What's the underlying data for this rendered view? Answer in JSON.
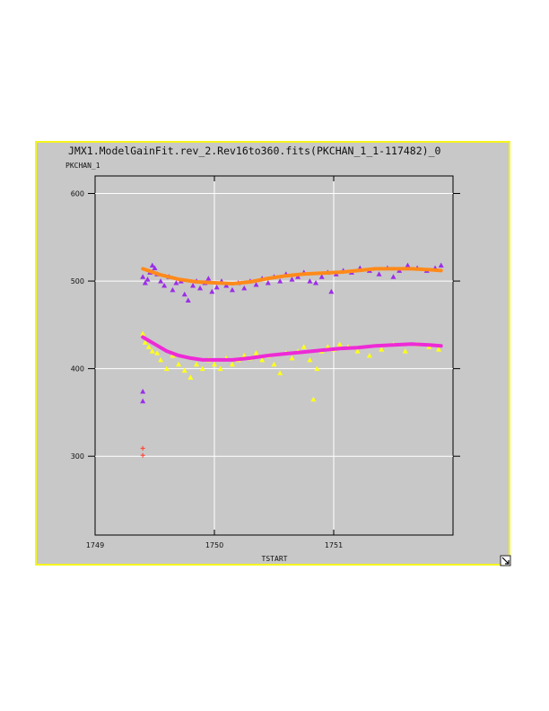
{
  "window": {
    "frame_color": "#f5f51c",
    "background": "#c8c8c8",
    "resize_icon": "resize-arrow-icon"
  },
  "chart_data": {
    "type": "scatter",
    "title": "JMX1.ModelGainFit.rev_2.Rev16to360.fits(PKCHAN_1_1-117482)_0",
    "xlabel": "TSTART",
    "ylabel": "PKCHAN_1",
    "xlim": [
      1749.0,
      1752.0
    ],
    "ylim": [
      210,
      620
    ],
    "xticks": [
      1749,
      1750,
      1751
    ],
    "xtick_labels": [
      "1749",
      "1750",
      "1751"
    ],
    "yticks": [
      300,
      400,
      500,
      600
    ],
    "ytick_labels": [
      "300",
      "400",
      "500",
      "600"
    ],
    "grid": true,
    "series": [
      {
        "marker": "triangle",
        "color": "#9b2de8",
        "values": [
          [
            1749.4,
            505
          ],
          [
            1749.42,
            498
          ],
          [
            1749.44,
            502
          ],
          [
            1749.46,
            510
          ],
          [
            1749.48,
            518
          ],
          [
            1749.5,
            515
          ],
          [
            1749.52,
            508
          ],
          [
            1749.55,
            500
          ],
          [
            1749.58,
            495
          ],
          [
            1749.62,
            505
          ],
          [
            1749.65,
            490
          ],
          [
            1749.68,
            498
          ],
          [
            1749.72,
            500
          ],
          [
            1749.75,
            485
          ],
          [
            1749.78,
            478
          ],
          [
            1749.82,
            495
          ],
          [
            1749.85,
            500
          ],
          [
            1749.88,
            492
          ],
          [
            1749.92,
            498
          ],
          [
            1749.95,
            503
          ],
          [
            1749.98,
            488
          ],
          [
            1750.02,
            493
          ],
          [
            1750.06,
            500
          ],
          [
            1750.1,
            495
          ],
          [
            1750.15,
            490
          ],
          [
            1750.2,
            498
          ],
          [
            1750.25,
            492
          ],
          [
            1750.3,
            500
          ],
          [
            1750.35,
            496
          ],
          [
            1750.4,
            503
          ],
          [
            1750.45,
            498
          ],
          [
            1750.5,
            505
          ],
          [
            1750.55,
            500
          ],
          [
            1750.6,
            508
          ],
          [
            1750.65,
            502
          ],
          [
            1750.7,
            505
          ],
          [
            1750.75,
            510
          ],
          [
            1750.8,
            500
          ],
          [
            1750.85,
            498
          ],
          [
            1750.9,
            505
          ],
          [
            1750.95,
            510
          ],
          [
            1750.98,
            488
          ],
          [
            1751.02,
            508
          ],
          [
            1751.08,
            512
          ],
          [
            1751.15,
            510
          ],
          [
            1751.22,
            515
          ],
          [
            1751.3,
            512
          ],
          [
            1751.38,
            508
          ],
          [
            1751.45,
            515
          ],
          [
            1751.5,
            505
          ],
          [
            1751.55,
            512
          ],
          [
            1751.62,
            518
          ],
          [
            1751.7,
            515
          ],
          [
            1751.78,
            512
          ],
          [
            1751.85,
            515
          ],
          [
            1751.9,
            518
          ],
          [
            1749.4,
            374
          ],
          [
            1749.4,
            363
          ]
        ]
      },
      {
        "marker": "triangle",
        "color": "#ffff1a",
        "values": [
          [
            1749.4,
            440
          ],
          [
            1749.42,
            430
          ],
          [
            1749.45,
            425
          ],
          [
            1749.48,
            420
          ],
          [
            1749.52,
            418
          ],
          [
            1749.55,
            410
          ],
          [
            1749.6,
            400
          ],
          [
            1749.65,
            415
          ],
          [
            1749.7,
            405
          ],
          [
            1749.75,
            398
          ],
          [
            1749.8,
            390
          ],
          [
            1749.85,
            405
          ],
          [
            1749.9,
            400
          ],
          [
            1749.95,
            410
          ],
          [
            1750.0,
            405
          ],
          [
            1750.05,
            400
          ],
          [
            1750.1,
            412
          ],
          [
            1750.15,
            405
          ],
          [
            1750.2,
            410
          ],
          [
            1750.25,
            415
          ],
          [
            1750.3,
            412
          ],
          [
            1750.35,
            418
          ],
          [
            1750.4,
            410
          ],
          [
            1750.45,
            415
          ],
          [
            1750.5,
            405
          ],
          [
            1750.55,
            395
          ],
          [
            1750.6,
            418
          ],
          [
            1750.65,
            412
          ],
          [
            1750.7,
            420
          ],
          [
            1750.75,
            425
          ],
          [
            1750.8,
            410
          ],
          [
            1750.83,
            365
          ],
          [
            1750.86,
            400
          ],
          [
            1750.9,
            420
          ],
          [
            1750.95,
            425
          ],
          [
            1751.0,
            422
          ],
          [
            1751.05,
            428
          ],
          [
            1751.12,
            425
          ],
          [
            1751.2,
            420
          ],
          [
            1751.3,
            415
          ],
          [
            1751.4,
            422
          ],
          [
            1751.5,
            428
          ],
          [
            1751.6,
            420
          ],
          [
            1751.7,
            428
          ],
          [
            1751.8,
            425
          ],
          [
            1751.88,
            422
          ]
        ]
      },
      {
        "marker": "cross",
        "color": "#ff4a3a",
        "values": [
          [
            1749.4,
            309
          ],
          [
            1749.4,
            301
          ]
        ]
      },
      {
        "marker": "line",
        "color": "#ff8a1a",
        "values": [
          [
            1749.4,
            514
          ],
          [
            1749.55,
            507
          ],
          [
            1749.7,
            502
          ],
          [
            1749.85,
            499
          ],
          [
            1750.0,
            498
          ],
          [
            1750.15,
            497
          ],
          [
            1750.3,
            499
          ],
          [
            1750.45,
            503
          ],
          [
            1750.6,
            506
          ],
          [
            1750.75,
            508
          ],
          [
            1750.9,
            509
          ],
          [
            1751.05,
            510
          ],
          [
            1751.2,
            512
          ],
          [
            1751.35,
            514
          ],
          [
            1751.5,
            514
          ],
          [
            1751.65,
            514
          ],
          [
            1751.8,
            513
          ],
          [
            1751.9,
            512
          ]
        ]
      },
      {
        "marker": "line",
        "color": "#ee2ad6",
        "values": [
          [
            1749.4,
            436
          ],
          [
            1749.5,
            428
          ],
          [
            1749.6,
            420
          ],
          [
            1749.7,
            415
          ],
          [
            1749.8,
            412
          ],
          [
            1749.9,
            410
          ],
          [
            1750.0,
            410
          ],
          [
            1750.15,
            410
          ],
          [
            1750.3,
            412
          ],
          [
            1750.45,
            415
          ],
          [
            1750.6,
            417
          ],
          [
            1750.75,
            419
          ],
          [
            1750.9,
            421
          ],
          [
            1751.05,
            423
          ],
          [
            1751.2,
            424
          ],
          [
            1751.35,
            426
          ],
          [
            1751.5,
            427
          ],
          [
            1751.65,
            428
          ],
          [
            1751.8,
            427
          ],
          [
            1751.9,
            426
          ]
        ]
      }
    ]
  }
}
